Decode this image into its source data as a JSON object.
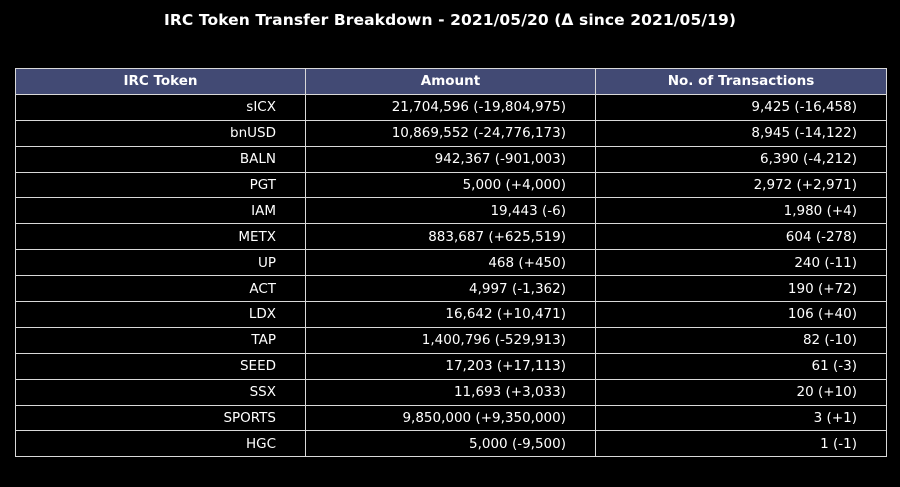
{
  "chart_data": {
    "type": "table",
    "title": "IRC Token Transfer Breakdown - 2021/05/20 (Δ since 2021/05/19)",
    "header_color": "#424a74",
    "background_color": "#000000",
    "grid_color": "#d9d9d9",
    "columns": [
      "IRC Token",
      "Amount",
      "No. of Transactions"
    ],
    "rows": [
      [
        "sICX",
        "21,704,596 (-19,804,975)",
        "9,425 (-16,458)"
      ],
      [
        "bnUSD",
        "10,869,552 (-24,776,173)",
        "8,945 (-14,122)"
      ],
      [
        "BALN",
        "942,367 (-901,003)",
        "6,390 (-4,212)"
      ],
      [
        "PGT",
        "5,000 (+4,000)",
        "2,972 (+2,971)"
      ],
      [
        "IAM",
        "19,443 (-6)",
        "1,980 (+4)"
      ],
      [
        "METX",
        "883,687 (+625,519)",
        "604 (-278)"
      ],
      [
        "UP",
        "468 (+450)",
        "240 (-11)"
      ],
      [
        "ACT",
        "4,997 (-1,362)",
        "190 (+72)"
      ],
      [
        "LDX",
        "16,642 (+10,471)",
        "106 (+40)"
      ],
      [
        "TAP",
        "1,400,796 (-529,913)",
        "82 (-10)"
      ],
      [
        "SEED",
        "17,203 (+17,113)",
        "61 (-3)"
      ],
      [
        "SSX",
        "11,693 (+3,033)",
        "20 (+10)"
      ],
      [
        "SPORTS",
        "9,850,000 (+9,350,000)",
        "3 (+1)"
      ],
      [
        "HGC",
        "5,000 (-9,500)",
        "1 (-1)"
      ]
    ]
  }
}
